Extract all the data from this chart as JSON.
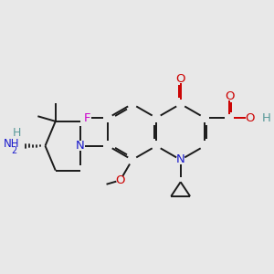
{
  "background_color": "#e8e8e8",
  "bond_color": "#1a1a1a",
  "bond_lw": 1.4,
  "atom_colors": {
    "O": "#cc0000",
    "N": "#1a1acc",
    "F": "#cc00cc",
    "H": "#5a9a9a",
    "C": "#1a1a1a"
  },
  "xlim": [
    1.2,
    8.8
  ],
  "ylim": [
    2.0,
    7.8
  ]
}
